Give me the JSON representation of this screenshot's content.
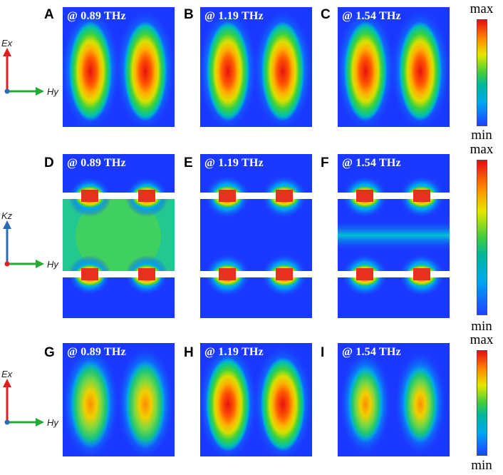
{
  "panels": [
    {
      "letter": "A",
      "freq": "@ 0.89 THz"
    },
    {
      "letter": "B",
      "freq": "@ 1.19 THz"
    },
    {
      "letter": "C",
      "freq": "@ 1.54 THz"
    },
    {
      "letter": "D",
      "freq": "@ 0.89 THz"
    },
    {
      "letter": "E",
      "freq": "@ 1.19 THz"
    },
    {
      "letter": "F",
      "freq": "@ 1.54 THz"
    },
    {
      "letter": "G",
      "freq": "@ 0.89 THz"
    },
    {
      "letter": "H",
      "freq": "@ 1.19 THz"
    },
    {
      "letter": "I",
      "freq": "@ 1.54 THz"
    }
  ],
  "colorbar": {
    "max_label": "max",
    "min_label": "min"
  },
  "axes": [
    {
      "vertical": "Ex",
      "horizontal": "Hy"
    },
    {
      "vertical": "Kz",
      "horizontal": "Hy"
    },
    {
      "vertical": "Ex",
      "horizontal": "Hy"
    }
  ],
  "colors": {
    "field_low": "#1a33ff",
    "field_high": "#e01010",
    "arrow_vertical_top": "#e02020",
    "arrow_vertical_mid": "#2b6cb0",
    "arrow_horizontal": "#22aa33"
  }
}
